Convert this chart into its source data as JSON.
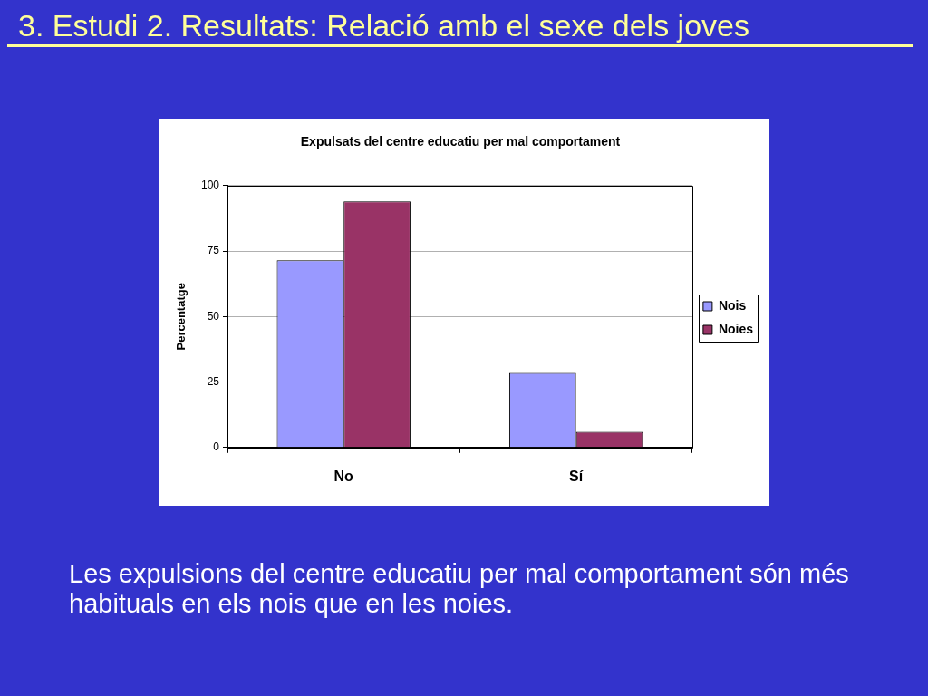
{
  "chart_data": {
    "type": "bar",
    "title": "3. Estudi 2. Resultats: Relació amb el sexe dels joves",
    "subtitle": "Expulsats del centre educatiu per mal comportament",
    "ylabel": "Percentatge",
    "categories": [
      "No",
      "Sí"
    ],
    "series": [
      {
        "name": "Nois",
        "color": "#9999ff",
        "values": [
          71.5,
          28.5
        ]
      },
      {
        "name": "Noies",
        "color": "#993366",
        "values": [
          94,
          6
        ]
      }
    ],
    "ylim": [
      0,
      100
    ],
    "yticks": [
      0,
      25,
      50,
      75,
      100
    ],
    "grid": "y",
    "legend": "right",
    "annotations": [
      "Les expulsions del centre educatiu per mal comportament són més habituals en els nois que en les noies."
    ]
  }
}
